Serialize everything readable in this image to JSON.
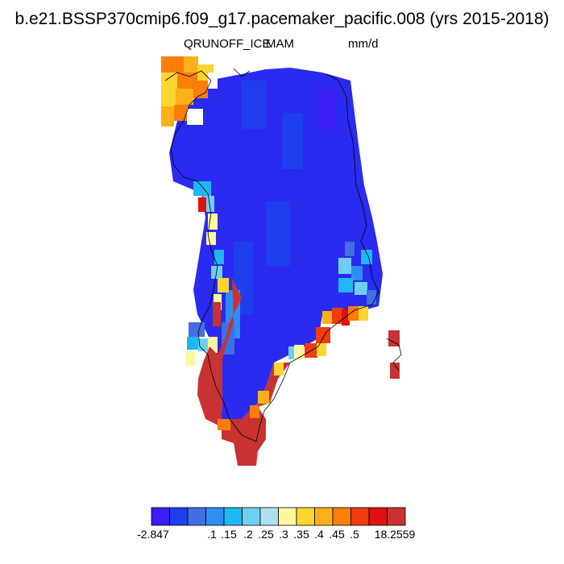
{
  "title": "b.e21.BSSP370cmip6.f09_g17.pacemaker_pacific.008 (yrs 2015-2018)",
  "variable": "QRUNOFF_ICE",
  "season": "MAM",
  "units": "mm/d",
  "colorbar": {
    "colors": [
      "#3b1ff5",
      "#1f3fef",
      "#3f6fe0",
      "#2f8ff0",
      "#1fb6f4",
      "#6fcff2",
      "#b0e0f0",
      "#fff7a0",
      "#fdd530",
      "#fbaf1a",
      "#fb7d0a",
      "#f03d0f",
      "#e01010",
      "#c83232"
    ],
    "labels": [
      "-2.847",
      ".1",
      ".15",
      ".2",
      ".25",
      ".3",
      ".35",
      ".4",
      ".45",
      ".5",
      "18.2559"
    ]
  }
}
